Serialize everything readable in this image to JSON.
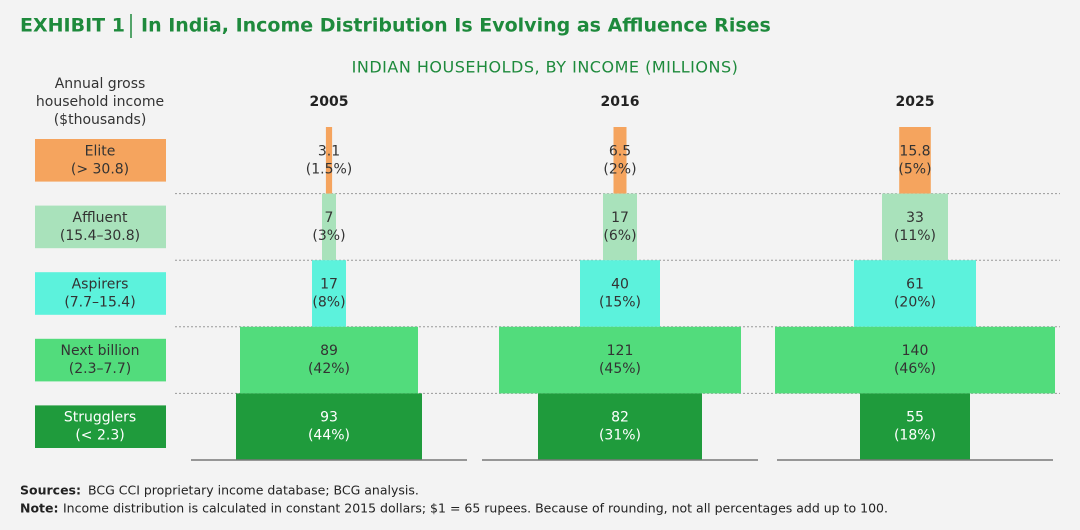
{
  "chart_data": {
    "type": "centered-bar",
    "exhibit": "EXHIBIT 1",
    "title": "In India, Income Distribution Is Evolving as Affluence Rises",
    "subtitle": "INDIAN HOUSEHOLDS, BY INCOME (MILLIONS)",
    "row_axis_label": [
      "Annual gross",
      "household income",
      "($thousands)"
    ],
    "categories": [
      "Elite",
      "Affluent",
      "Aspirers",
      "Next billion",
      "Strugglers"
    ],
    "category_ranges": [
      "(> 30.8)",
      "(15.4–30.8)",
      "(7.7–15.4)",
      "(2.3–7.7)",
      "(< 2.3)"
    ],
    "colors": [
      "#f5a45e",
      "#a9e2bb",
      "#5cf2dc",
      "#52dc7c",
      "#1f9b3c"
    ],
    "xlim": [
      0,
      150
    ],
    "series": [
      {
        "name": "2005",
        "values": [
          3.1,
          7,
          17,
          89,
          93
        ],
        "share_labels": [
          "(1.5%)",
          "(3%)",
          "(8%)",
          "(42%)",
          "(44%)"
        ]
      },
      {
        "name": "2016",
        "values": [
          6.5,
          17,
          40,
          121,
          82
        ],
        "share_labels": [
          "(2%)",
          "(6%)",
          "(15%)",
          "(45%)",
          "(31%)"
        ]
      },
      {
        "name": "2025",
        "values": [
          15.8,
          33,
          61,
          140,
          55
        ],
        "share_labels": [
          "(5%)",
          "(11%)",
          "(20%)",
          "(46%)",
          "(18%)"
        ]
      }
    ],
    "sources_label": "Sources:",
    "sources": "BCG CCI proprietary income database; BCG analysis.",
    "note_label": "Note:",
    "note": "Income distribution is calculated in constant 2015 dollars; $1 = 65 rupees. Because of rounding, not all percentages add up to 100."
  }
}
